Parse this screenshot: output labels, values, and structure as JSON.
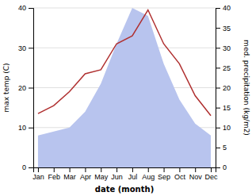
{
  "chart_data": {
    "type": "line",
    "xlabel": "date (month)",
    "ylabel": "max temp (C)",
    "y2label": "med. precipitation (kg/m2)",
    "categories": [
      "Jan",
      "Feb",
      "Mar",
      "Apr",
      "May",
      "Jun",
      "Jul",
      "Aug",
      "Sep",
      "Oct",
      "Nov",
      "Dec"
    ],
    "series": [
      {
        "type": "area",
        "axis": "y2",
        "color": "#b8c4ee",
        "values": [
          8.0,
          9.0,
          10.0,
          14.0,
          21.0,
          31.0,
          40.0,
          38.0,
          26.0,
          17.0,
          11.0,
          8.0
        ]
      },
      {
        "type": "line",
        "color": "#b03030",
        "values": [
          13.5,
          15.5,
          19.0,
          23.5,
          24.5,
          31.0,
          33.0,
          39.5,
          31.0,
          26.0,
          18.0,
          13.0
        ]
      }
    ],
    "ylim": [
      0,
      40
    ],
    "yticks": [
      0,
      10,
      20,
      30,
      40
    ],
    "y2lim": [
      0,
      40
    ],
    "y2ticks": [
      0,
      5,
      10,
      15,
      20,
      25,
      30,
      35,
      40
    ],
    "grid": true
  }
}
